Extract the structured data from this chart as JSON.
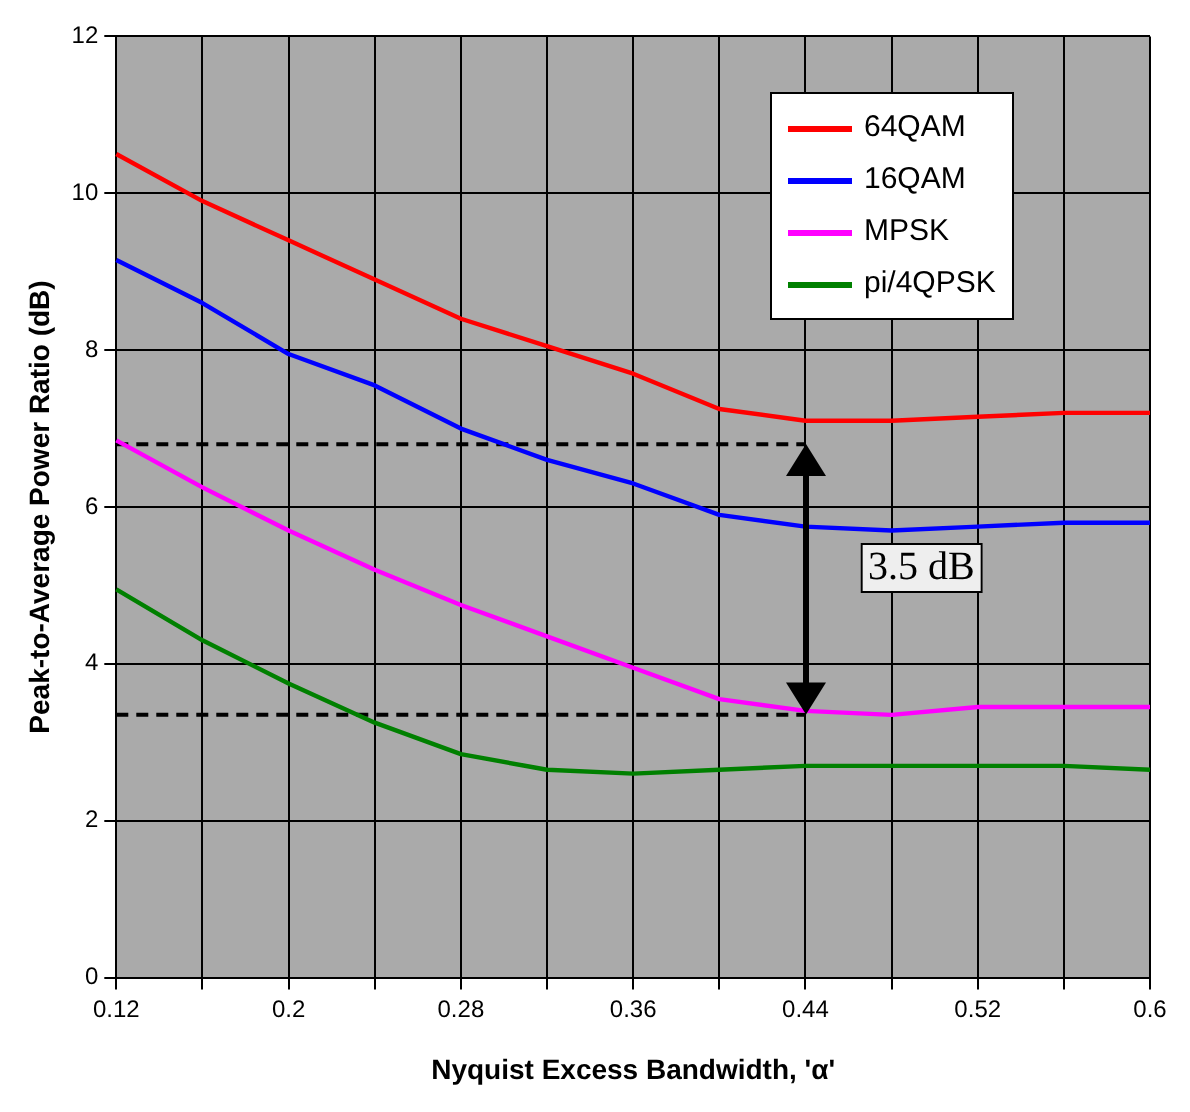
{
  "chart_data": {
    "type": "line",
    "xlabel": "Nyquist Excess Bandwidth, 'α'",
    "ylabel": "Peak-to-Average Power Ratio (dB)",
    "x": [
      0.12,
      0.16,
      0.2,
      0.24,
      0.28,
      0.32,
      0.36,
      0.4,
      0.44,
      0.48,
      0.52,
      0.56,
      0.6
    ],
    "series": [
      {
        "name": "64QAM",
        "color": "#ff0000",
        "values": [
          10.5,
          9.9,
          9.4,
          8.9,
          8.4,
          8.05,
          7.7,
          7.25,
          7.1,
          7.1,
          7.15,
          7.2,
          7.2
        ]
      },
      {
        "name": "16QAM",
        "color": "#0000ff",
        "values": [
          9.15,
          8.6,
          7.95,
          7.55,
          7.0,
          6.6,
          6.3,
          5.9,
          5.75,
          5.7,
          5.75,
          5.8,
          5.8
        ]
      },
      {
        "name": "MPSK",
        "color": "#ff00ff",
        "values": [
          6.85,
          6.25,
          5.7,
          5.2,
          4.75,
          4.35,
          3.95,
          3.55,
          3.4,
          3.35,
          3.45,
          3.45,
          3.45
        ]
      },
      {
        "name": "pi/4QPSK",
        "color": "#008000",
        "values": [
          4.95,
          4.3,
          3.75,
          3.25,
          2.85,
          2.65,
          2.6,
          2.65,
          2.7,
          2.7,
          2.7,
          2.7,
          2.65
        ]
      },
      {
        "color": "#000000",
        "line_style": "dashed",
        "values": [
          6.8,
          6.8,
          6.8,
          6.8,
          6.8,
          6.8,
          6.8,
          6.8,
          6.8,
          null,
          null,
          null,
          null
        ]
      },
      {
        "color": "#000000",
        "line_style": "dashed",
        "values": [
          3.35,
          3.35,
          3.35,
          3.35,
          3.35,
          3.35,
          3.35,
          3.35,
          3.35,
          null,
          null,
          null,
          null
        ]
      }
    ],
    "annotations": [
      "3.5 dB"
    ],
    "xlim": [
      0.12,
      0.6
    ],
    "xticks": [
      0.12,
      {
        "value": 0.16,
        "label": null
      },
      0.2,
      {
        "value": 0.24,
        "label": null
      },
      0.28,
      {
        "value": 0.32,
        "label": null
      },
      0.36,
      {
        "value": 0.4,
        "label": null
      },
      0.44,
      {
        "value": 0.48,
        "label": null
      },
      0.52,
      {
        "value": 0.56,
        "label": null
      },
      0.6
    ],
    "ylim": [
      0,
      12
    ],
    "yticks": [
      0,
      2,
      4,
      6,
      8,
      10,
      12
    ],
    "grid": true,
    "legend": "top right",
    "marker": "none"
  }
}
